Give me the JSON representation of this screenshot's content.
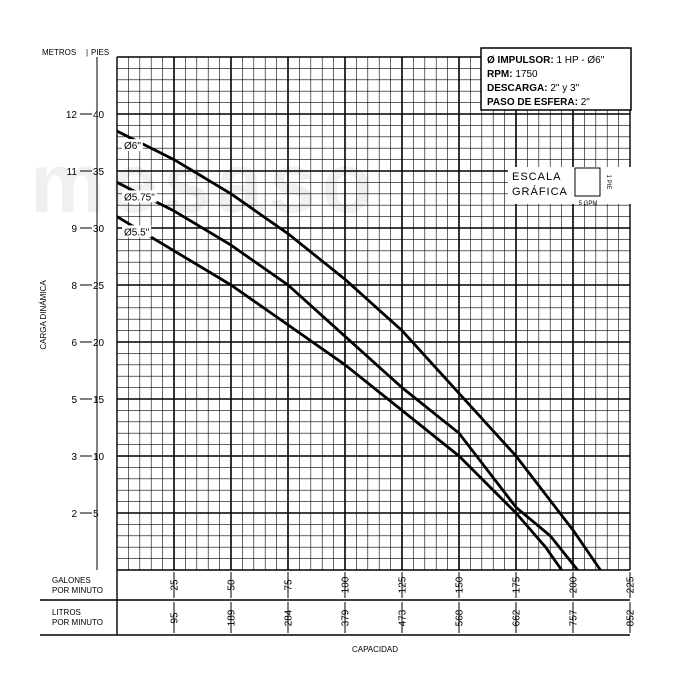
{
  "chart_data": {
    "type": "line",
    "title": "",
    "ylabel": "CARGA DINÁMICA",
    "xlabel": "CAPACIDAD",
    "y_units": {
      "metros": "METROS",
      "pies": "PIES"
    },
    "xlim": [
      0,
      225
    ],
    "ylim": [
      0,
      45
    ],
    "grid": true,
    "gpm_ticks": [
      25,
      50,
      75,
      100,
      125,
      150,
      175,
      200,
      225
    ],
    "lpm_ticks": [
      "95",
      "189",
      "284",
      "379",
      "473",
      "568",
      "662",
      "757",
      "852"
    ],
    "feet_ticks": [
      5,
      10,
      15,
      20,
      25,
      30,
      35,
      40
    ],
    "meter_ticks": [
      "2",
      "3",
      "5",
      "6",
      "8",
      "9",
      "11",
      "12"
    ],
    "x_row_labels": {
      "gpm": [
        "GALONES",
        "POR MINUTO"
      ],
      "lpm": [
        "LITROS",
        "POR MINUTO"
      ]
    },
    "series": [
      {
        "name": "Ø6\"",
        "x": [
          0,
          25,
          50,
          75,
          100,
          125,
          150,
          175,
          200,
          212
        ],
        "y": [
          38.5,
          36,
          33,
          29.5,
          25.5,
          21,
          15.5,
          10,
          3.5,
          0
        ]
      },
      {
        "name": "Ø5.75\"",
        "x": [
          0,
          25,
          50,
          75,
          100,
          125,
          150,
          175,
          190,
          202
        ],
        "y": [
          34,
          31.5,
          28.5,
          25,
          20.5,
          16,
          12,
          5.5,
          3,
          0
        ]
      },
      {
        "name": "Ø5.5\"",
        "x": [
          0,
          25,
          50,
          75,
          100,
          125,
          150,
          175,
          188,
          195
        ],
        "y": [
          31,
          28,
          25,
          21.5,
          18,
          14,
          10,
          5,
          2,
          0
        ]
      }
    ],
    "info_box": [
      {
        "label": "Ø IMPULSOR:",
        "value": "1 HP - Ø6\""
      },
      {
        "label": "RPM:",
        "value": "1750"
      },
      {
        "label": "DESCARGA:",
        "value": "2\" y 3\""
      },
      {
        "label": "PASO DE ESFERA:",
        "value": "2\""
      }
    ],
    "scale": {
      "line1": "ESCALA",
      "line2": "GRÁFICA",
      "y_unit": "1 PIE",
      "x_unit": "5 GPM"
    }
  }
}
